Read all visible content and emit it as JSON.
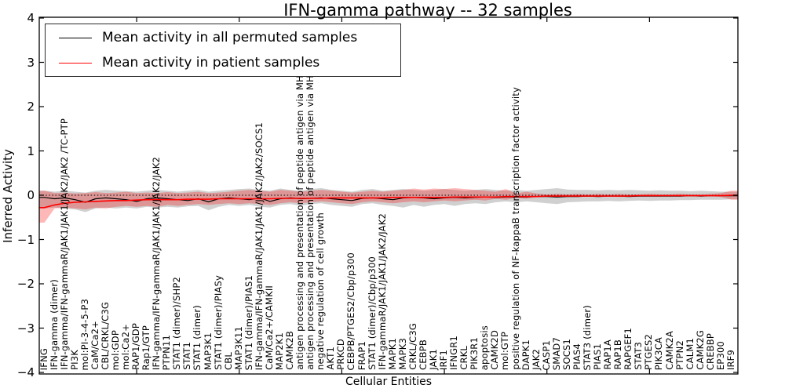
{
  "title": "IFN-gamma pathway -- 32 samples",
  "axes": {
    "ylabel": "Inferred Activity",
    "xlabel": "Cellular Entities",
    "yticks": [
      "4",
      "3",
      "2",
      "1",
      "0",
      "−1",
      "−2",
      "−3",
      "−4"
    ],
    "ylim": [
      -4,
      4
    ]
  },
  "legend": {
    "entries": [
      {
        "label": "Mean activity in all permuted samples",
        "color": "#000000"
      },
      {
        "label": "Mean activity in patient samples",
        "color": "#ff0000"
      }
    ]
  },
  "colors": {
    "permuted_line": "#000000",
    "patient_line": "#ff0000",
    "permuted_band": "rgba(120,120,120,0.35)",
    "patient_band": "rgba(255,0,0,0.28)",
    "zero_line": "#000000",
    "frame": "#000000"
  },
  "chart_data": {
    "type": "line",
    "title": "IFN-gamma pathway -- 32 samples",
    "xlabel": "Cellular Entities",
    "ylabel": "Inferred Activity",
    "ylim": [
      -4,
      4
    ],
    "zero_reference_line": 0,
    "x_labels": [
      "IFNG",
      "IFN-gamma (dimer)",
      "IFN-gamma/IFN-gammaR/JAK1/JAK1/JAK2/JAK2  /TC-PTP",
      "PI3K",
      "mol:PI-3-4-5-P3",
      "CaM/Ca2+",
      "CBL/CRKL/C3G",
      "mol:GDP",
      "mol:Ca2+",
      "RAP1/GDP",
      "Rap1/GTP",
      "IFN-gamma/IFN-gammaR/JAK1/JAK1/JAK2/JAK2",
      "PTPN11",
      "STAT1 (dimer)/SHP2",
      "STAT1",
      "STAT1 (dimer)",
      "MAP3K1",
      "STAT1 (dimer)/PIASy",
      "CBL",
      "MAP3K11",
      "STAT1 (dimer)/PIAS1",
      "IFN-gamma/IFN-gammaR/JAK1/JAK1/JAK2/JAK2/SOCS1",
      "CaM/Ca2+/CAMKII",
      "MAP2K1",
      "CAMK2B",
      "antigen processing and presentation of peptide antigen via MHC class I",
      "antigen processing and presentation of peptide antigen via MHC class I",
      "negative regulation of cell growth",
      "AKT1",
      "PRKCD",
      "CEBPB/PTGES2/Cbp/p300",
      "FRAP1",
      "STAT1 (dimer)/Cbp/p300",
      "IFN-gammaR/JAK1/JAK1/JAK2/JAK2",
      "MAPK1",
      "MAPK3",
      "CRKL/C3G",
      "CEBPB",
      "JAK1",
      "IRF1",
      "IFNGR1",
      "CRKL",
      "PIK3R1",
      "apoptosis",
      "CAMK2D",
      "mol:GTP",
      "positive regulation of NF-kappaB transcription factor activity",
      "DAPK1",
      "JAK2",
      "CASP1",
      "SMAD7",
      "SOCS1",
      "PIAS4",
      "STAT3 (dimer)",
      "PIAS1",
      "RAP1A",
      "RAP1B",
      "RAPGEF1",
      "STAT3",
      "PTGES2",
      "PIK3CA",
      "CAMK2A",
      "PTPN2",
      "CALM1",
      "CAMK2G",
      "CREBBP",
      "EP300",
      "IRF9"
    ],
    "series": [
      {
        "name": "Mean activity in all permuted samples",
        "role": "line",
        "color": "#000000",
        "values": [
          -0.05,
          -0.08,
          -0.06,
          -0.1,
          -0.16,
          -0.08,
          -0.06,
          -0.08,
          -0.1,
          -0.14,
          -0.08,
          -0.06,
          -0.08,
          -0.1,
          -0.12,
          -0.08,
          -0.15,
          -0.08,
          -0.06,
          -0.08,
          -0.1,
          -0.06,
          -0.14,
          -0.08,
          -0.06,
          -0.08,
          -0.07,
          -0.06,
          -0.08,
          -0.1,
          -0.12,
          -0.07,
          -0.06,
          -0.08,
          -0.1,
          -0.06,
          -0.05,
          -0.06,
          -0.08,
          -0.06,
          -0.05,
          -0.06,
          -0.05,
          -0.04,
          -0.05,
          -0.04,
          -0.04,
          -0.04,
          -0.03,
          -0.03,
          -0.04,
          -0.03,
          -0.03,
          -0.02,
          -0.03,
          -0.02,
          -0.02,
          -0.03,
          -0.02,
          -0.02,
          -0.02,
          -0.02,
          -0.02,
          -0.01,
          -0.02,
          -0.01,
          -0.01,
          -0.01
        ]
      },
      {
        "name": "Mean activity in patient samples",
        "role": "line",
        "color": "#ff0000",
        "values": [
          -0.28,
          -0.22,
          -0.18,
          -0.16,
          -0.15,
          -0.14,
          -0.13,
          -0.12,
          -0.12,
          -0.11,
          -0.1,
          -0.1,
          -0.1,
          -0.1,
          -0.09,
          -0.09,
          -0.09,
          -0.08,
          -0.08,
          -0.08,
          -0.08,
          -0.08,
          -0.08,
          -0.07,
          -0.07,
          -0.07,
          -0.07,
          -0.07,
          -0.06,
          -0.06,
          -0.06,
          -0.06,
          -0.06,
          -0.06,
          -0.05,
          -0.05,
          -0.05,
          -0.05,
          -0.05,
          -0.05,
          -0.04,
          -0.04,
          -0.04,
          -0.04,
          -0.04,
          -0.03,
          -0.03,
          -0.03,
          -0.03,
          -0.02,
          -0.02,
          -0.02,
          -0.02,
          -0.02,
          -0.02,
          -0.02,
          -0.02,
          -0.02,
          -0.01,
          -0.01,
          -0.01,
          -0.01,
          -0.01,
          -0.01,
          -0.01,
          -0.01,
          -0.01,
          0.0
        ]
      },
      {
        "name": "patient band upper",
        "role": "band_upper",
        "color": "rgba(255,0,0,0.28)",
        "values": [
          0.1,
          0.05,
          0.06,
          0.04,
          0.05,
          0.07,
          0.05,
          0.06,
          0.08,
          0.05,
          0.06,
          0.05,
          0.07,
          0.05,
          0.06,
          0.08,
          0.05,
          0.06,
          0.08,
          0.1,
          0.12,
          0.1,
          0.08,
          0.12,
          0.1,
          0.08,
          0.1,
          0.12,
          0.1,
          0.08,
          0.06,
          0.08,
          0.1,
          0.08,
          0.1,
          0.12,
          0.15,
          0.13,
          0.15,
          0.14,
          0.16,
          0.14,
          0.12,
          0.1,
          0.08,
          0.14,
          0.04,
          0.08,
          0.04,
          0.02,
          0.03,
          0.02,
          0.03,
          0.02,
          0.03,
          0.02,
          0.03,
          0.02,
          0.02,
          0.03,
          0.02,
          0.02,
          0.03,
          0.02,
          0.02,
          0.03,
          0.05,
          0.1
        ]
      },
      {
        "name": "patient band lower",
        "role": "band_lower",
        "color": "rgba(255,0,0,0.28)",
        "values": [
          -0.62,
          -0.3,
          -0.28,
          -0.3,
          -0.32,
          -0.28,
          -0.3,
          -0.26,
          -0.24,
          -0.26,
          -0.24,
          -0.26,
          -0.22,
          -0.24,
          -0.22,
          -0.2,
          -0.22,
          -0.2,
          -0.18,
          -0.2,
          -0.18,
          -0.2,
          -0.22,
          -0.18,
          -0.16,
          -0.18,
          -0.16,
          -0.14,
          -0.16,
          -0.18,
          -0.2,
          -0.16,
          -0.14,
          -0.16,
          -0.18,
          -0.16,
          -0.14,
          -0.16,
          -0.14,
          -0.12,
          -0.14,
          -0.12,
          -0.1,
          -0.12,
          -0.08,
          -0.1,
          -0.06,
          -0.08,
          -0.05,
          -0.04,
          -0.05,
          -0.04,
          -0.04,
          -0.03,
          -0.04,
          -0.03,
          -0.04,
          -0.03,
          -0.03,
          -0.03,
          -0.03,
          -0.02,
          -0.03,
          -0.02,
          -0.03,
          -0.02,
          -0.04,
          -0.1
        ]
      },
      {
        "name": "permuted band upper",
        "role": "band_upper",
        "color": "rgba(120,120,120,0.35)",
        "values": [
          0.1,
          0.08,
          0.1,
          0.08,
          0.06,
          0.1,
          0.12,
          0.1,
          0.09,
          0.08,
          0.1,
          0.12,
          0.1,
          0.08,
          0.1,
          0.12,
          0.08,
          0.1,
          0.12,
          0.14,
          0.15,
          0.12,
          0.1,
          0.15,
          0.12,
          0.1,
          0.14,
          0.16,
          0.12,
          0.1,
          0.08,
          0.12,
          0.14,
          0.1,
          0.12,
          0.14,
          0.12,
          0.1,
          0.12,
          0.14,
          0.12,
          0.1,
          0.12,
          0.14,
          0.12,
          0.1,
          0.12,
          0.1,
          0.12,
          0.14,
          0.16,
          0.13,
          0.12,
          0.12,
          0.11,
          0.12,
          0.11,
          0.12,
          0.11,
          0.1,
          0.11,
          0.1,
          0.1,
          0.09,
          0.1,
          0.09,
          0.08,
          0.08
        ]
      },
      {
        "name": "permuted band lower",
        "role": "band_lower",
        "color": "rgba(120,120,120,0.35)",
        "values": [
          -0.3,
          -0.28,
          -0.3,
          -0.32,
          -0.38,
          -0.3,
          -0.28,
          -0.3,
          -0.28,
          -0.3,
          -0.26,
          -0.28,
          -0.26,
          -0.28,
          -0.25,
          -0.24,
          -0.34,
          -0.26,
          -0.22,
          -0.24,
          -0.22,
          -0.26,
          -0.28,
          -0.22,
          -0.2,
          -0.24,
          -0.2,
          -0.18,
          -0.22,
          -0.24,
          -0.26,
          -0.2,
          -0.18,
          -0.22,
          -0.24,
          -0.28,
          -0.22,
          -0.26,
          -0.22,
          -0.2,
          -0.24,
          -0.2,
          -0.18,
          -0.2,
          -0.16,
          -0.14,
          -0.16,
          -0.14,
          -0.16,
          -0.18,
          -0.2,
          -0.16,
          -0.15,
          -0.14,
          -0.14,
          -0.13,
          -0.14,
          -0.13,
          -0.12,
          -0.13,
          -0.12,
          -0.12,
          -0.11,
          -0.11,
          -0.1,
          -0.1,
          -0.1,
          -0.09
        ]
      }
    ],
    "legend_position": "upper left",
    "grid": false
  }
}
